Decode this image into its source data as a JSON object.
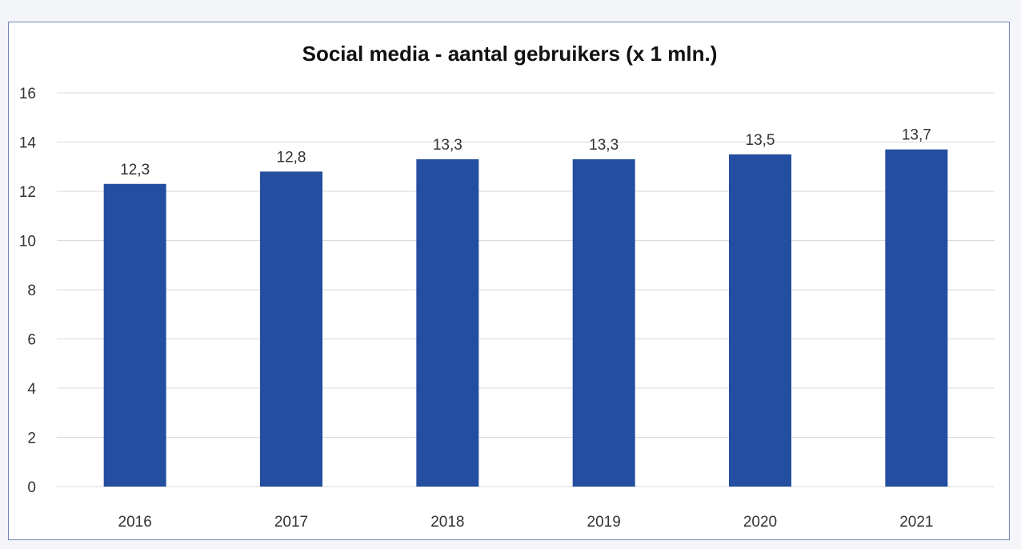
{
  "chart_data": {
    "type": "bar",
    "title": "Social media - aantal gebruikers (x 1 mln.)",
    "categories": [
      "2016",
      "2017",
      "2018",
      "2019",
      "2020",
      "2021"
    ],
    "values": [
      12.3,
      12.8,
      13.3,
      13.3,
      13.5,
      13.7
    ],
    "data_labels": [
      "12,3",
      "12,8",
      "13,3",
      "13,3",
      "13,5",
      "13,7"
    ],
    "xlabel": "",
    "ylabel": "",
    "ylim": [
      0,
      16
    ],
    "yticks": [
      "0",
      "2",
      "4",
      "6",
      "8",
      "10",
      "12",
      "14",
      "16"
    ],
    "grid": true,
    "legend": "none",
    "colors": {
      "bar": "#244ea0",
      "grid": "#d9d9d9",
      "frame": "#6f86b8"
    }
  }
}
